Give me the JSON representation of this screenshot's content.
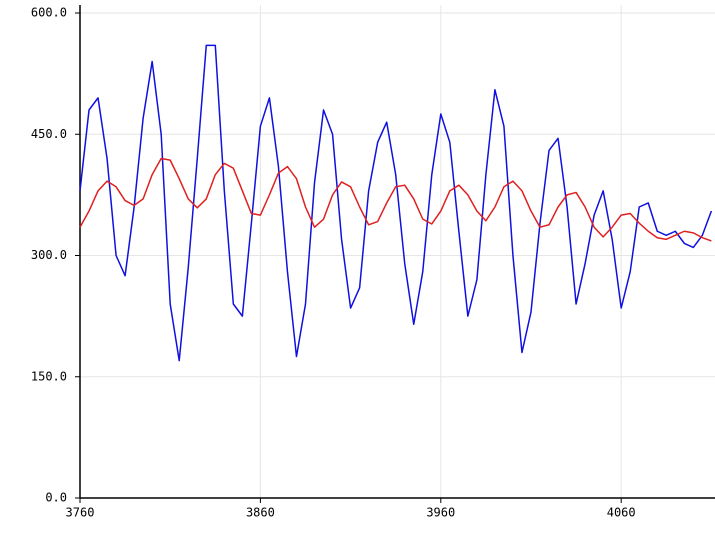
{
  "chart_data": {
    "type": "line",
    "x": [
      3760,
      3765,
      3770,
      3775,
      3780,
      3785,
      3790,
      3795,
      3800,
      3805,
      3810,
      3815,
      3820,
      3825,
      3830,
      3835,
      3840,
      3845,
      3850,
      3855,
      3860,
      3865,
      3870,
      3875,
      3880,
      3885,
      3890,
      3895,
      3900,
      3905,
      3910,
      3915,
      3920,
      3925,
      3930,
      3935,
      3940,
      3945,
      3950,
      3955,
      3960,
      3965,
      3970,
      3975,
      3980,
      3985,
      3990,
      3995,
      4000,
      4005,
      4010,
      4015,
      4020,
      4025,
      4030,
      4035,
      4040,
      4045,
      4050,
      4055,
      4060,
      4065,
      4070,
      4075,
      4080,
      4085,
      4090,
      4095,
      4100,
      4105,
      4110
    ],
    "series": [
      {
        "color": "#1010e0",
        "values": [
          380,
          480,
          495,
          420,
          300,
          275,
          360,
          470,
          540,
          450,
          240,
          170,
          285,
          420,
          560,
          560,
          380,
          240,
          225,
          340,
          460,
          495,
          410,
          280,
          175,
          240,
          390,
          480,
          450,
          320,
          235,
          260,
          380,
          440,
          465,
          400,
          290,
          215,
          280,
          400,
          475,
          440,
          330,
          225,
          270,
          400,
          505,
          460,
          300,
          180,
          230,
          340,
          430,
          445,
          360,
          240,
          290,
          350,
          380,
          320,
          235,
          280,
          360,
          365,
          330,
          325,
          330,
          315,
          310,
          325,
          355
        ]
      },
      {
        "color": "#e02020",
        "values": [
          335,
          355,
          380,
          392,
          385,
          368,
          362,
          370,
          400,
          420,
          418,
          395,
          370,
          359,
          370,
          400,
          414,
          408,
          380,
          352,
          350,
          375,
          402,
          410,
          395,
          360,
          335,
          345,
          375,
          391,
          385,
          360,
          338,
          342,
          365,
          385,
          387,
          370,
          345,
          339,
          355,
          380,
          387,
          375,
          355,
          343,
          360,
          385,
          392,
          380,
          355,
          335,
          338,
          360,
          375,
          378,
          360,
          335,
          323,
          335,
          350,
          352,
          340,
          330,
          322,
          320,
          325,
          330,
          328,
          322,
          318
        ]
      }
    ],
    "xlim": [
      3760,
      4112
    ],
    "xticks": [
      3760,
      3860,
      3960,
      4060
    ],
    "ylim": [
      0,
      600
    ],
    "yticks": [
      {
        "value": 0,
        "label": "0.0"
      },
      {
        "value": 150,
        "label": "150.0"
      },
      {
        "value": 300,
        "label": "300.0"
      },
      {
        "value": 450,
        "label": "450.0"
      },
      {
        "value": 600,
        "label": "600.0"
      }
    ],
    "grid": true
  }
}
